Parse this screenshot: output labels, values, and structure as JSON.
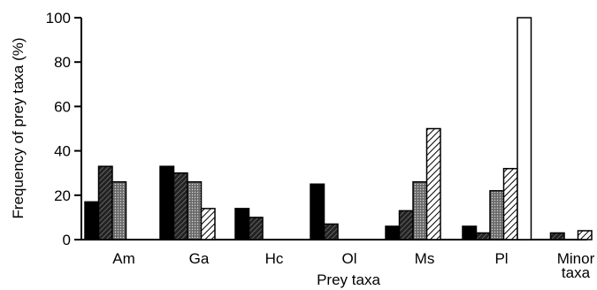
{
  "chart_data": {
    "type": "bar",
    "xlabel": "Prey taxa",
    "ylabel": "Frequency of prey taxa (%)",
    "ylim": [
      0,
      100
    ],
    "yticks": [
      0,
      20,
      40,
      60,
      80,
      100
    ],
    "grid": false,
    "legend": "none",
    "categories": [
      "Am",
      "Ga",
      "Hc",
      "Ol",
      "Ms",
      "Pl",
      "Minor taxa"
    ],
    "series": [
      {
        "fill": "solid-black",
        "values": [
          17,
          33,
          14,
          25,
          6,
          6,
          0
        ]
      },
      {
        "fill": "dense-dark-hatch",
        "values": [
          33,
          30,
          10,
          7,
          13,
          3,
          3
        ]
      },
      {
        "fill": "stipple-gray",
        "values": [
          26,
          26,
          0,
          0,
          26,
          22,
          0
        ]
      },
      {
        "fill": "diagonal-hatch",
        "values": [
          0,
          14,
          0,
          0,
          50,
          32,
          4
        ]
      },
      {
        "fill": "open-white",
        "values": [
          0,
          0,
          0,
          0,
          0,
          100,
          0
        ]
      }
    ]
  }
}
